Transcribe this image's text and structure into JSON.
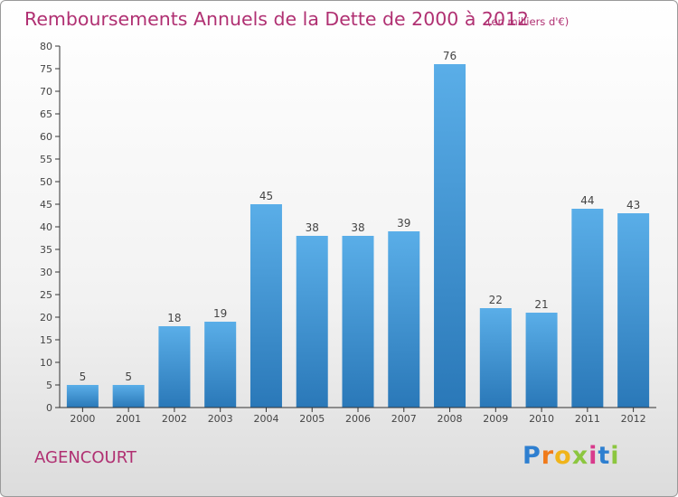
{
  "header": {
    "title": "Remboursements Annuels de la Dette de 2000 à 2012",
    "unit": "(en milliers d'€)"
  },
  "footer": {
    "town": "AGENCOURT",
    "brand": [
      "P",
      "r",
      "o",
      "x",
      "i",
      "t",
      "i"
    ],
    "brand_colors": [
      "#2e7fd0",
      "#f07a1a",
      "#f0b41a",
      "#8cc63f",
      "#d83a8c",
      "#2e7fd0",
      "#8cc63f"
    ]
  },
  "chart_data": {
    "type": "bar",
    "title": "Remboursements Annuels de la Dette de 2000 à 2012",
    "unit": "(en milliers d'€)",
    "categories": [
      "2000",
      "2001",
      "2002",
      "2003",
      "2004",
      "2005",
      "2006",
      "2007",
      "2008",
      "2009",
      "2010",
      "2011",
      "2012"
    ],
    "values": [
      5,
      5,
      18,
      19,
      45,
      38,
      38,
      39,
      76,
      22,
      21,
      44,
      43
    ],
    "ylim": [
      0,
      80
    ],
    "yticks": [
      0,
      5,
      10,
      15,
      20,
      25,
      30,
      35,
      40,
      45,
      50,
      55,
      60,
      65,
      70,
      75,
      80
    ],
    "grid": false,
    "legend": "none",
    "bar_color_top": "#5aaee8",
    "bar_color_bottom": "#2a78b8"
  }
}
